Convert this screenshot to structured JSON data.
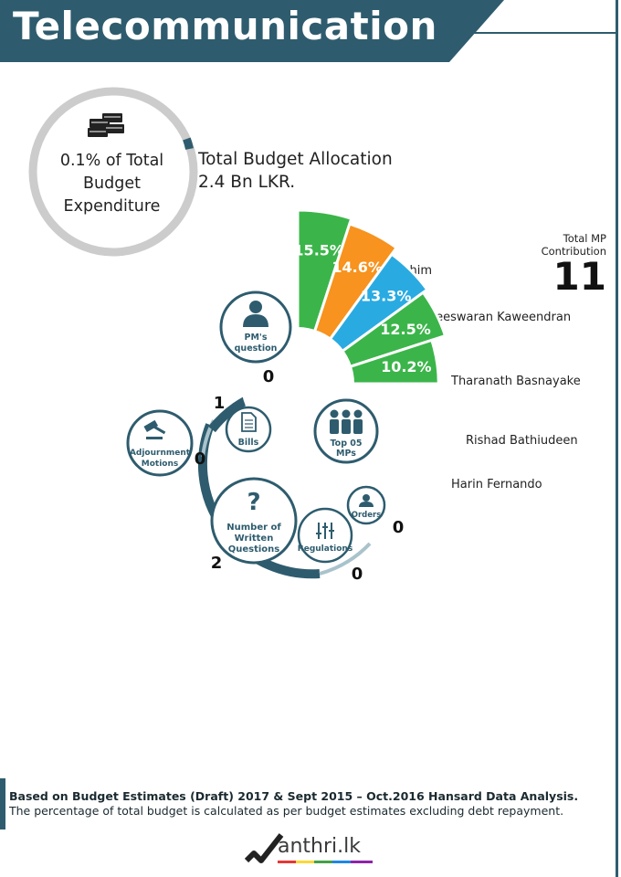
{
  "header": {
    "title": "Telecommunication"
  },
  "budget": {
    "percent_label": "0.1% of Total Budget Expenditure",
    "percent_fraction": 0.001,
    "allocation_line1": "Total Budget Allocation",
    "allocation_line2": "2.4 Bn LKR."
  },
  "total_mp": {
    "label_line1": "Total MP",
    "label_line2": "Contribution",
    "value": "11"
  },
  "top_mps": {
    "hub_label": "Top 05 MPs",
    "items": [
      {
        "name": "Kabeer Hashim",
        "percent": "15.5%",
        "value": 15.5,
        "color": "#3bb54a"
      },
      {
        "name": "Kodeeswaran Kaweendran",
        "percent": "14.6%",
        "value": 14.6,
        "color": "#f7931e"
      },
      {
        "name": "Tharanath Basnayake",
        "percent": "13.3%",
        "value": 13.3,
        "color": "#29abe2"
      },
      {
        "name": "Rishad Bathiudeen",
        "percent": "12.5%",
        "value": 12.5,
        "color": "#3bb54a"
      },
      {
        "name": "Harin Fernando",
        "percent": "10.2%",
        "value": 10.2,
        "color": "#3bb54a"
      }
    ]
  },
  "activities": {
    "pm_question": {
      "label_line1": "PM's",
      "label_line2": "question",
      "count": "0"
    },
    "bills": {
      "label": "Bills",
      "count": "1"
    },
    "adjournment": {
      "label_line1": "Adjournment",
      "label_line2": "Motions",
      "count": "0"
    },
    "written_questions": {
      "label_line1": "Number of",
      "label_line2": "Written",
      "label_line3": "Questions",
      "count": "2"
    },
    "regulations": {
      "label": "Regulations",
      "count": "0"
    },
    "orders": {
      "label": "Orders",
      "count": "0"
    }
  },
  "footer": {
    "line1": "Based on Budget Estimates (Draft) 2017 & Sept 2015 – Oct.2016  Hansard Data Analysis.",
    "line2": "The percentage of total budget is calculated as per budget estimates excluding debt repayment."
  },
  "logo": {
    "text": "anthri.lk"
  },
  "colors": {
    "primary": "#2e5c6e",
    "ring_grey": "#cccccc",
    "light_track": "#a9c3cc"
  }
}
